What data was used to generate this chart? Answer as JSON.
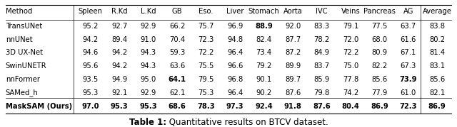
{
  "title": "Table 1: Quantitative results on BTCV dataset.",
  "columns": [
    "Method",
    "Spleen",
    "R.Kd",
    "L.Kd",
    "GB",
    "Eso.",
    "Liver",
    "Stomach",
    "Aorta",
    "IVC",
    "Veins",
    "Pancreas",
    "AG",
    "Average"
  ],
  "rows": [
    [
      "TransUNet",
      "95.2",
      "92.7",
      "92.9",
      "66.2",
      "75.7",
      "96.9",
      "88.9",
      "92.0",
      "83.3",
      "79.1",
      "77.5",
      "63.7",
      "83.8"
    ],
    [
      "nnUNet",
      "94.2",
      "89.4",
      "91.0",
      "70.4",
      "72.3",
      "94.8",
      "82.4",
      "87.7",
      "78.2",
      "72.0",
      "68.0",
      "61.6",
      "80.2"
    ],
    [
      "3D UX-Net",
      "94.6",
      "94.2",
      "94.3",
      "59.3",
      "72.2",
      "96.4",
      "73.4",
      "87.2",
      "84.9",
      "72.2",
      "80.9",
      "67.1",
      "81.4"
    ],
    [
      "SwinUNETR",
      "95.6",
      "94.2",
      "94.3",
      "63.6",
      "75.5",
      "96.6",
      "79.2",
      "89.9",
      "83.7",
      "75.0",
      "82.2",
      "67.3",
      "83.1"
    ],
    [
      "nnFormer",
      "93.5",
      "94.9",
      "95.0",
      "64.1",
      "79.5",
      "96.8",
      "90.1",
      "89.7",
      "85.9",
      "77.8",
      "85.6",
      "73.9",
      "85.6"
    ],
    [
      "SAMed_h",
      "95.3",
      "92.1",
      "92.9",
      "62.1",
      "75.3",
      "96.4",
      "90.2",
      "87.6",
      "79.8",
      "74.2",
      "77.9",
      "61.0",
      "82.1"
    ],
    [
      "MaskSAM (Ours)",
      "97.0",
      "95.3",
      "95.3",
      "68.6",
      "78.3",
      "97.3",
      "92.4",
      "91.8",
      "87.6",
      "80.4",
      "86.9",
      "72.3",
      "86.9"
    ]
  ],
  "bold_cells": {
    "0": [
      7
    ],
    "4": [
      4,
      12
    ],
    "6": [
      1,
      2,
      3,
      9,
      10,
      11,
      13
    ]
  },
  "background_color": "#ffffff",
  "table_font_size": 7.2,
  "title_font_size": 8.5,
  "figsize": [
    6.4,
    1.79
  ]
}
